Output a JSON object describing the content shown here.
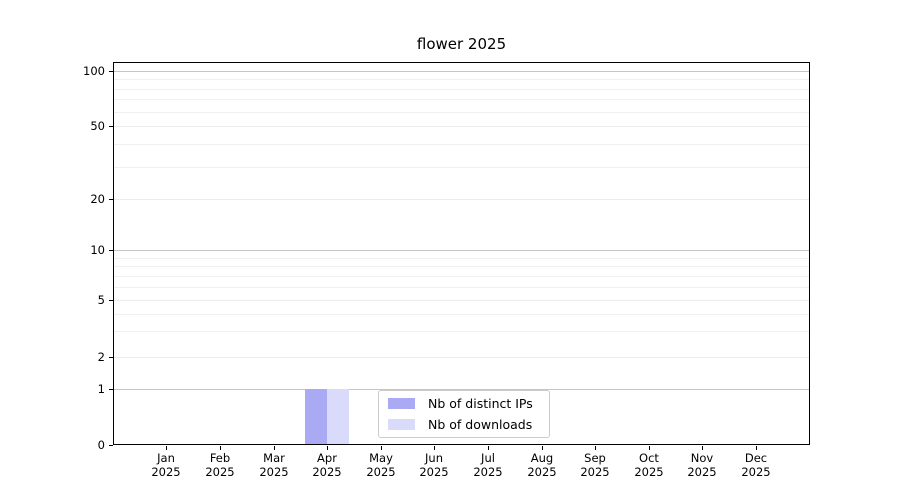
{
  "chart_data": {
    "type": "bar",
    "title": "flower 2025",
    "xlabel": "",
    "ylabel": "",
    "categories": [
      "Jan 2025",
      "Feb 2025",
      "Mar 2025",
      "Apr 2025",
      "May 2025",
      "Jun 2025",
      "Jul 2025",
      "Aug 2025",
      "Sep 2025",
      "Oct 2025",
      "Nov 2025",
      "Dec 2025"
    ],
    "x_year_label": "2025",
    "series": [
      {
        "name": "Nb of distinct IPs",
        "color": "#a9a9f4",
        "values": [
          0,
          0,
          0,
          1,
          0,
          0,
          0,
          0,
          0,
          0,
          0,
          0
        ]
      },
      {
        "name": "Nb of downloads",
        "color": "#dadafa",
        "values": [
          0,
          0,
          0,
          1,
          0,
          0,
          0,
          0,
          0,
          0,
          0,
          0
        ]
      }
    ],
    "yscale": "log-like (linear 0-1, log above)",
    "yticks_major": [
      0,
      1,
      2,
      5,
      10,
      20,
      50,
      100
    ],
    "yticks_minor": [
      3,
      4,
      6,
      7,
      8,
      9,
      30,
      40,
      60,
      70,
      80,
      90
    ],
    "ylim": [
      0,
      110
    ],
    "grid": "horizontal, major and minor",
    "legend_position": "lower center"
  },
  "colors": {
    "axis": "#000000",
    "grid_decade": "#c5c5c5",
    "grid_minor": "#f0f0f0",
    "background": "#ffffff"
  }
}
